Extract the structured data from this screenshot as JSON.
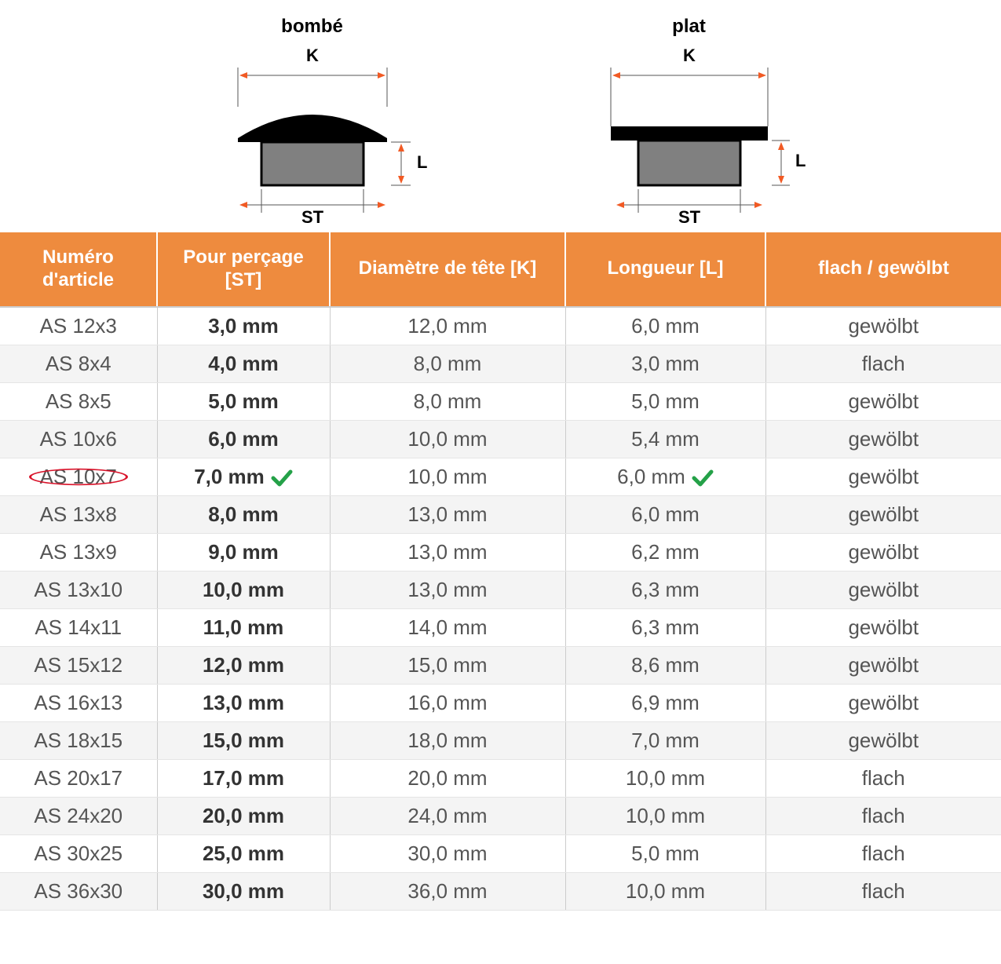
{
  "diagrams": {
    "left_title": "bombé",
    "right_title": "plat",
    "label_K": "K",
    "label_L": "L",
    "label_ST": "ST",
    "colors": {
      "arrow": "#f15a24",
      "dim_line": "#555555",
      "cap_black": "#000000",
      "stem_grey": "#808080",
      "outline": "#000000"
    }
  },
  "table": {
    "header_bg": "#ee8b3e",
    "header_fg": "#ffffff",
    "row_alt_bg": "#f4f4f4",
    "text_color": "#555555",
    "check_color": "#24a148",
    "circle_color": "#d9132a",
    "columns": [
      "Numéro d'article",
      "Pour perçage [ST]",
      "Diamètre de tête [K]",
      "Longueur [L]",
      "flach / gewölbt"
    ],
    "highlight_row_index": 4,
    "rows": [
      {
        "art": "AS 12x3",
        "st": "3,0 mm",
        "k": "12,0 mm",
        "l": "6,0 mm",
        "type": "gewölbt"
      },
      {
        "art": "AS 8x4",
        "st": "4,0 mm",
        "k": "8,0 mm",
        "l": "3,0 mm",
        "type": "flach"
      },
      {
        "art": "AS 8x5",
        "st": "5,0 mm",
        "k": "8,0 mm",
        "l": "5,0 mm",
        "type": "gewölbt"
      },
      {
        "art": "AS 10x6",
        "st": "6,0 mm",
        "k": "10,0 mm",
        "l": "5,4 mm",
        "type": "gewölbt"
      },
      {
        "art": "AS 10x7",
        "st": "7,0 mm",
        "k": "10,0 mm",
        "l": "6,0 mm",
        "type": "gewölbt"
      },
      {
        "art": "AS 13x8",
        "st": "8,0 mm",
        "k": "13,0 mm",
        "l": "6,0 mm",
        "type": "gewölbt"
      },
      {
        "art": "AS 13x9",
        "st": "9,0 mm",
        "k": "13,0 mm",
        "l": "6,2 mm",
        "type": "gewölbt"
      },
      {
        "art": "AS 13x10",
        "st": "10,0 mm",
        "k": "13,0 mm",
        "l": "6,3 mm",
        "type": "gewölbt"
      },
      {
        "art": "AS 14x11",
        "st": "11,0 mm",
        "k": "14,0 mm",
        "l": "6,3 mm",
        "type": "gewölbt"
      },
      {
        "art": "AS 15x12",
        "st": "12,0 mm",
        "k": "15,0 mm",
        "l": "8,6 mm",
        "type": "gewölbt"
      },
      {
        "art": "AS 16x13",
        "st": "13,0 mm",
        "k": "16,0 mm",
        "l": "6,9 mm",
        "type": "gewölbt"
      },
      {
        "art": "AS 18x15",
        "st": "15,0 mm",
        "k": "18,0 mm",
        "l": "7,0 mm",
        "type": "gewölbt"
      },
      {
        "art": "AS 20x17",
        "st": "17,0 mm",
        "k": "20,0 mm",
        "l": "10,0 mm",
        "type": "flach"
      },
      {
        "art": "AS 24x20",
        "st": "20,0 mm",
        "k": "24,0 mm",
        "l": "10,0 mm",
        "type": "flach"
      },
      {
        "art": "AS 30x25",
        "st": "25,0 mm",
        "k": "30,0 mm",
        "l": "5,0 mm",
        "type": "flach"
      },
      {
        "art": "AS 36x30",
        "st": "30,0 mm",
        "k": "36,0 mm",
        "l": "10,0 mm",
        "type": "flach"
      }
    ]
  }
}
